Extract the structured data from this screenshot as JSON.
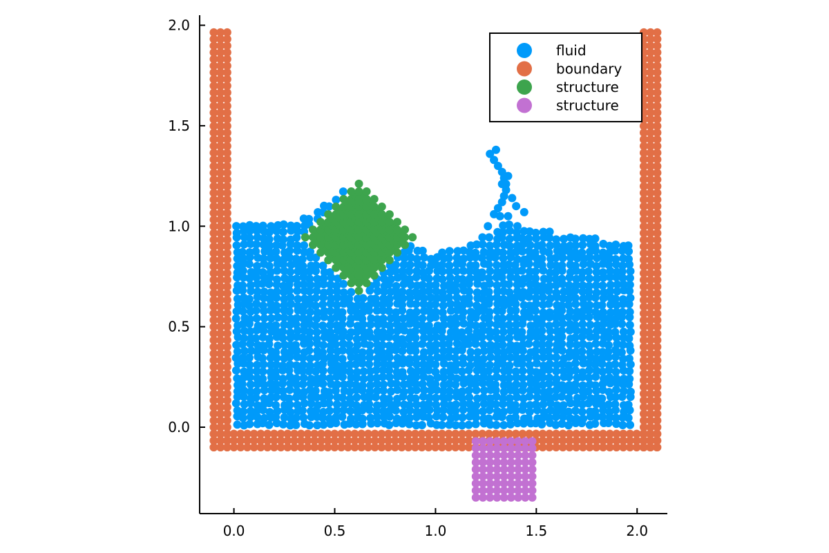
{
  "chart_data": {
    "type": "scatter",
    "title": "",
    "xlabel": "",
    "ylabel": "",
    "xlim": [
      -0.17,
      2.15
    ],
    "ylim": [
      -0.43,
      2.05
    ],
    "x_ticks": [
      0.0,
      0.5,
      1.0,
      1.5,
      2.0
    ],
    "y_ticks": [
      0.0,
      0.5,
      1.0,
      1.5,
      2.0
    ],
    "x_tick_labels": [
      "0.0",
      "0.5",
      "1.0",
      "1.5",
      "2.0"
    ],
    "y_tick_labels": [
      "0.0",
      "0.5",
      "1.0",
      "1.5",
      "2.0"
    ],
    "aspect": "equal",
    "grid": false,
    "legend_position": "top-right",
    "series": [
      {
        "name": "fluid",
        "color": "#009AFA",
        "description_hint": "free-surface fluid particles filling the tank up to about y=0.9-1.05, with a splash jet near x=1.2-1.4 reaching y=1.38",
        "generator": "fluid"
      },
      {
        "name": "boundary",
        "color": "#E26F46",
        "generator": "boundary",
        "left_wall_x": [
          -0.1,
          -0.0667,
          -0.0333
        ],
        "right_wall_x": [
          2.0333,
          2.0667,
          2.1
        ],
        "wall_y_range": [
          -0.1,
          1.98
        ],
        "bottom_y": [
          -0.1,
          -0.0667,
          -0.0333
        ],
        "bottom_x_range": [
          -0.1,
          2.1
        ],
        "spacing": 0.0333
      },
      {
        "name": "structure",
        "color": "#3DA44D",
        "generator": "diamond",
        "center": [
          0.62,
          0.945
        ],
        "half_diagonal": 0.27,
        "spacing": 0.038
      },
      {
        "name": "structure",
        "color": "#C271D2",
        "generator": "grid",
        "x_range": [
          1.2,
          1.48
        ],
        "y_range": [
          -0.35,
          -0.07
        ],
        "spacing": 0.035
      }
    ]
  }
}
